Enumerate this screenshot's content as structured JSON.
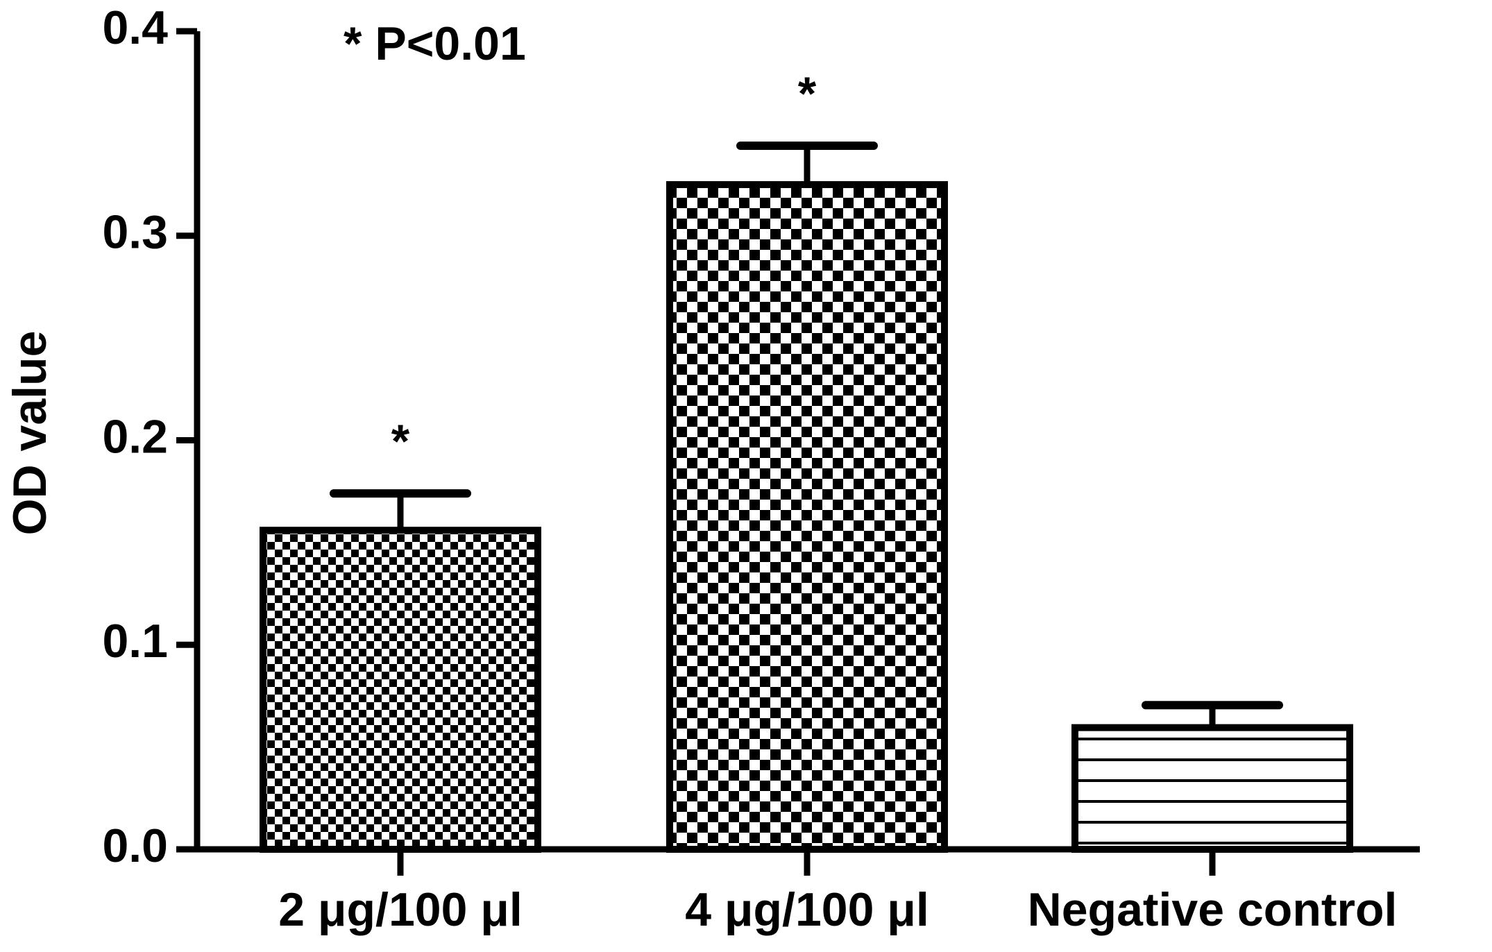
{
  "chart_data": {
    "type": "bar",
    "y_label": "OD value",
    "annotation": "* P<0.01",
    "categories": [
      "2 μg/100 μl",
      "4 μg/100 μl",
      "Negative control"
    ],
    "values": [
      0.156,
      0.325,
      0.0595
    ],
    "errors": [
      0.018,
      0.019,
      0.011
    ],
    "significance": [
      "*",
      "*",
      null
    ],
    "patterns": [
      "checker-fine",
      "checker-coarse",
      "hlines"
    ],
    "color": "#000000",
    "ylim": [
      0,
      0.4
    ],
    "yticks": [
      {
        "value": 0,
        "label": "0.0"
      },
      0.1,
      0.2,
      0.3,
      0.4
    ],
    "grid": false
  }
}
